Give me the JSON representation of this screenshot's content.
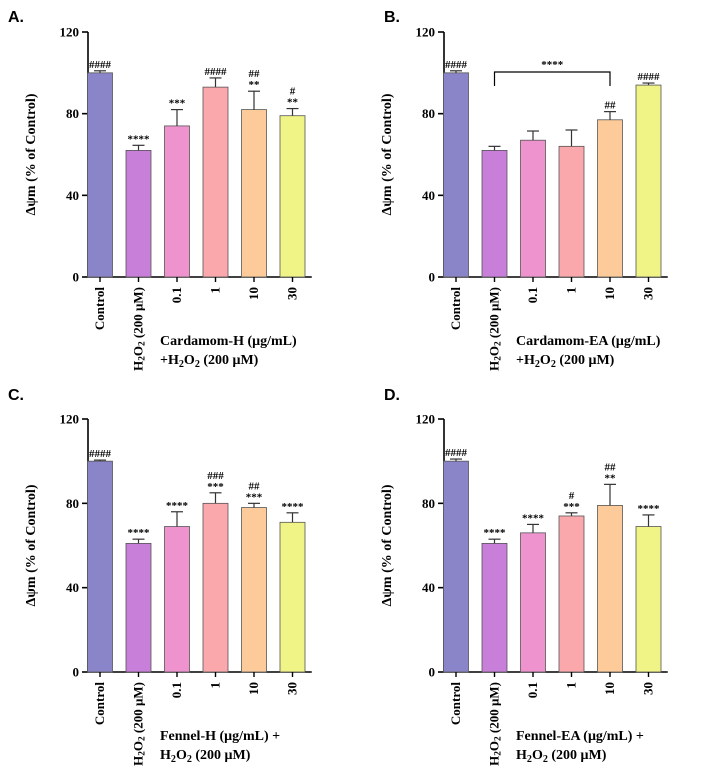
{
  "chart_data": [
    {
      "type": "bar",
      "panel": "A.",
      "ylabel": "Δψm (% of Control)",
      "ylim": [
        0,
        120
      ],
      "yticks": [
        "0",
        "40",
        "80",
        "120"
      ],
      "categories": [
        "Control",
        "H2O2 (200 μM)",
        "0.1",
        "1",
        "10",
        "30"
      ],
      "values": [
        100,
        62,
        74,
        93,
        82,
        79
      ],
      "errors": [
        1,
        2.5,
        8,
        4.5,
        9,
        3.5
      ],
      "colors": [
        "#8a84c8",
        "#c77fda",
        "#ef93cf",
        "#fba8ad",
        "#fdcb9a",
        "#f0f385"
      ],
      "annotations": [
        [
          "####"
        ],
        [
          "****"
        ],
        [
          "***"
        ],
        [
          "####"
        ],
        [
          "##",
          "**"
        ],
        [
          "#",
          "**"
        ]
      ],
      "xlabel_lines": [
        "Cardamom-H (μg/mL)",
        "+H2O2 (200 μM)"
      ]
    },
    {
      "type": "bar",
      "panel": "B.",
      "ylabel": "Δψm (% of Control)",
      "ylim": [
        0,
        120
      ],
      "yticks": [
        "0",
        "40",
        "80",
        "120"
      ],
      "categories": [
        "Control",
        "H2O2 (200 μM)",
        "0.1",
        "1",
        "10",
        "30"
      ],
      "values": [
        100,
        62,
        67,
        64,
        77,
        94
      ],
      "errors": [
        1,
        2,
        4.5,
        8,
        4,
        1
      ],
      "colors": [
        "#8a84c8",
        "#c77fda",
        "#ef93cf",
        "#fba8ad",
        "#fdcb9a",
        "#f0f385"
      ],
      "annotations": [
        [
          "####"
        ],
        [],
        [],
        [],
        [
          "##"
        ],
        [
          "####"
        ]
      ],
      "bracket": {
        "from": 1,
        "to": 4,
        "label": "****"
      },
      "xlabel_lines": [
        "Cardamom-EA (μg/mL)",
        "+H2O2 (200 μM)"
      ]
    },
    {
      "type": "bar",
      "panel": "C.",
      "ylabel": "Δψm (% of Control)",
      "ylim": [
        0,
        120
      ],
      "yticks": [
        "0",
        "40",
        "80",
        "120"
      ],
      "categories": [
        "Control",
        "H2O2 (200 μM)",
        "0.1",
        "1",
        "10",
        "30"
      ],
      "values": [
        100,
        61,
        69,
        80,
        78,
        71
      ],
      "errors": [
        0.5,
        2,
        7,
        5,
        2,
        4.5
      ],
      "colors": [
        "#8a84c8",
        "#c77fda",
        "#ef93cf",
        "#fba8ad",
        "#fdcb9a",
        "#f0f385"
      ],
      "annotations": [
        [
          "####"
        ],
        [
          "****"
        ],
        [
          "****"
        ],
        [
          "###",
          "***"
        ],
        [
          "##",
          "***"
        ],
        [
          "****"
        ]
      ],
      "xlabel_lines": [
        "Fennel-H (μg/mL) +",
        "H2O2 (200 μM)"
      ]
    },
    {
      "type": "bar",
      "panel": "D.",
      "ylabel": "Δψm (% of Control)",
      "ylim": [
        0,
        120
      ],
      "yticks": [
        "0",
        "40",
        "80",
        "120"
      ],
      "categories": [
        "Control",
        "H2O2 (200 μM)",
        "0.1",
        "1",
        "10",
        "30"
      ],
      "values": [
        100,
        61,
        66,
        74,
        79,
        69
      ],
      "errors": [
        1,
        2,
        4,
        1.5,
        10,
        5.5
      ],
      "colors": [
        "#8a84c8",
        "#c77fda",
        "#ef93cf",
        "#fba8ad",
        "#fdcb9a",
        "#f0f385"
      ],
      "annotations": [
        [
          "####"
        ],
        [
          "****"
        ],
        [
          "****"
        ],
        [
          "#",
          "***"
        ],
        [
          "##",
          "**"
        ],
        [
          "****"
        ]
      ],
      "xlabel_lines": [
        "Fennel-EA (μg/mL) +",
        "H2O2 (200 μM)"
      ]
    }
  ]
}
